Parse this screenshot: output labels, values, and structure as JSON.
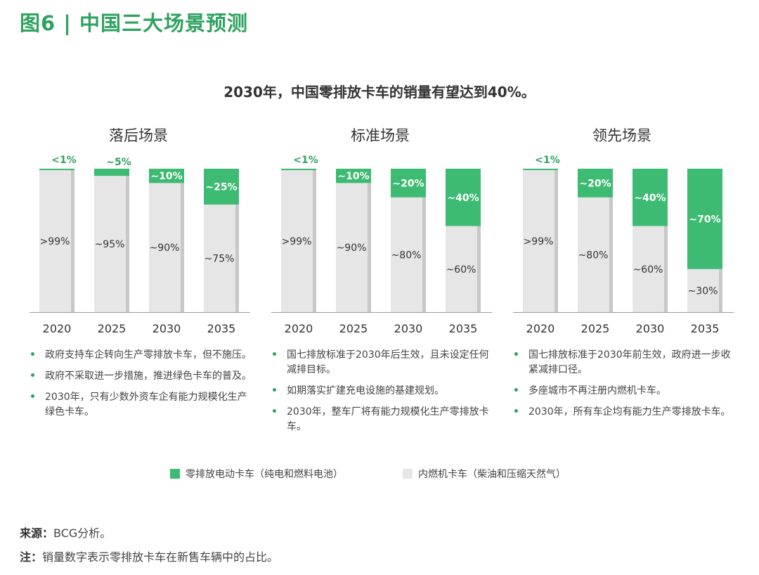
{
  "figure_title": "图6 | 中国三大场景预测",
  "headline": "2030年，中国零排放卡车的销量有望达到40%。",
  "colors": {
    "zev": "#3dbb72",
    "ice": "#e6e6e6",
    "ice_side": "#c8c8c8",
    "accent": "#2fa260",
    "axis": "#9a9a9a"
  },
  "chart_data": [
    {
      "type": "bar",
      "title": "落后场景",
      "categories": [
        "2020",
        "2025",
        "2030",
        "2035"
      ],
      "series": [
        {
          "name": "零排放电动卡车（纯电和燃料电池）",
          "values": [
            1,
            5,
            10,
            25
          ],
          "labels": [
            "<1%",
            "~5%",
            "~10%",
            "~25%"
          ]
        },
        {
          "name": "内燃机卡车（柴油和压缩天然气）",
          "values": [
            99,
            95,
            90,
            75
          ],
          "labels": [
            ">99%",
            "~95%",
            "~90%",
            "~75%"
          ]
        }
      ],
      "ylim": [
        0,
        100
      ]
    },
    {
      "type": "bar",
      "title": "标准场景",
      "categories": [
        "2020",
        "2025",
        "2030",
        "2035"
      ],
      "series": [
        {
          "name": "零排放电动卡车（纯电和燃料电池）",
          "values": [
            1,
            10,
            20,
            40
          ],
          "labels": [
            "<1%",
            "~10%",
            "~20%",
            "~40%"
          ]
        },
        {
          "name": "内燃机卡车（柴油和压缩天然气）",
          "values": [
            99,
            90,
            80,
            60
          ],
          "labels": [
            ">99%",
            "~90%",
            "~80%",
            "~60%"
          ]
        }
      ],
      "ylim": [
        0,
        100
      ]
    },
    {
      "type": "bar",
      "title": "领先场景",
      "categories": [
        "2020",
        "2025",
        "2030",
        "2035"
      ],
      "series": [
        {
          "name": "零排放电动卡车（纯电和燃料电池）",
          "values": [
            1,
            20,
            40,
            70
          ],
          "labels": [
            "<1%",
            "~20%",
            "~40%",
            "~70%"
          ]
        },
        {
          "name": "内燃机卡车（柴油和压缩天然气）",
          "values": [
            99,
            80,
            60,
            30
          ],
          "labels": [
            ">99%",
            "~80%",
            "~60%",
            "~30%"
          ]
        }
      ],
      "ylim": [
        0,
        100
      ]
    }
  ],
  "bullets": [
    [
      "政府支持车企转向生产零排放卡车，但不施压。",
      "政府不采取进一步措施，推进绿色卡车的普及。",
      "2030年，只有少数外资车企有能力规模化生产绿色卡车。"
    ],
    [
      "国七排放标准于2030年后生效，且未设定任何减排目标。",
      "如期落实扩建充电设施的基建规划。",
      "2030年，整车厂将有能力规模化生产零排放卡车。"
    ],
    [
      "国七排放标准于2030年前生效，政府进一步收紧减排口径。",
      "多座城市不再注册内燃机卡车。",
      "2030年，所有车企均有能力生产零排放卡车。"
    ]
  ],
  "legend": {
    "zev": "零排放电动卡车（纯电和燃料电池）",
    "ice": "内燃机卡车（柴油和压缩天然气）"
  },
  "source_label": "来源：",
  "source_text": "BCG分析。",
  "note_label": "注：",
  "note_text": "销量数字表示零排放卡车在新售车辆中的占比。"
}
